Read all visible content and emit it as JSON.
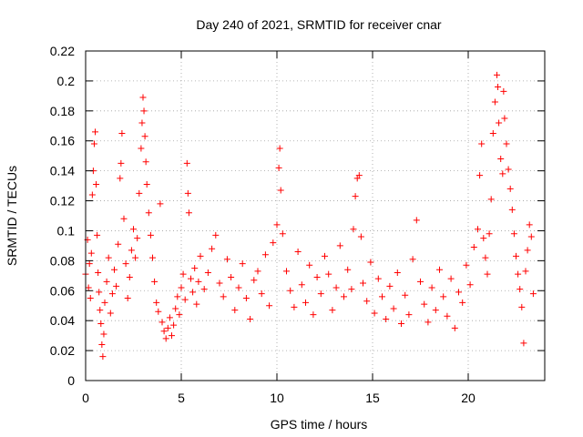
{
  "chart_data": {
    "type": "scatter",
    "title": "Day 240 of 2021, SRMTID for receiver cnar",
    "xlabel": "GPS time / hours",
    "ylabel": "SRMTID / TECUs",
    "xlim": [
      0,
      24
    ],
    "ylim": [
      0,
      0.22
    ],
    "xticks": [
      0,
      5,
      10,
      15,
      20
    ],
    "xtick_labels": [
      "0",
      "5",
      "10",
      "15",
      "20"
    ],
    "yticks": [
      0,
      0.02,
      0.04,
      0.06,
      0.08,
      0.1,
      0.12,
      0.14,
      0.16,
      0.18,
      0.2,
      0.22
    ],
    "ytick_labels": [
      "0",
      "0.02",
      "0.04",
      "0.06",
      "0.08",
      "0.1",
      "0.12",
      "0.14",
      "0.16",
      "0.18",
      "0.2",
      "0.22"
    ],
    "grid": true,
    "marker": "+",
    "series_color": "#ff0000",
    "series": [
      {
        "name": "SRMTID",
        "points": [
          [
            0.0,
            0.071
          ],
          [
            0.1,
            0.094
          ],
          [
            0.15,
            0.062
          ],
          [
            0.2,
            0.078
          ],
          [
            0.25,
            0.055
          ],
          [
            0.3,
            0.085
          ],
          [
            0.35,
            0.124
          ],
          [
            0.4,
            0.14
          ],
          [
            0.45,
            0.158
          ],
          [
            0.5,
            0.166
          ],
          [
            0.55,
            0.131
          ],
          [
            0.6,
            0.097
          ],
          [
            0.65,
            0.072
          ],
          [
            0.7,
            0.059
          ],
          [
            0.75,
            0.047
          ],
          [
            0.8,
            0.038
          ],
          [
            0.85,
            0.024
          ],
          [
            0.9,
            0.016
          ],
          [
            0.95,
            0.031
          ],
          [
            1.0,
            0.052
          ],
          [
            1.1,
            0.066
          ],
          [
            1.2,
            0.082
          ],
          [
            1.3,
            0.045
          ],
          [
            1.4,
            0.058
          ],
          [
            1.5,
            0.074
          ],
          [
            1.6,
            0.063
          ],
          [
            1.7,
            0.091
          ],
          [
            1.8,
            0.135
          ],
          [
            1.85,
            0.145
          ],
          [
            1.9,
            0.165
          ],
          [
            2.0,
            0.108
          ],
          [
            2.1,
            0.078
          ],
          [
            2.2,
            0.055
          ],
          [
            2.3,
            0.069
          ],
          [
            2.4,
            0.087
          ],
          [
            2.5,
            0.101
          ],
          [
            2.6,
            0.082
          ],
          [
            2.7,
            0.095
          ],
          [
            2.8,
            0.125
          ],
          [
            2.9,
            0.155
          ],
          [
            2.95,
            0.172
          ],
          [
            3.0,
            0.189
          ],
          [
            3.05,
            0.18
          ],
          [
            3.1,
            0.163
          ],
          [
            3.15,
            0.146
          ],
          [
            3.2,
            0.131
          ],
          [
            3.3,
            0.112
          ],
          [
            3.4,
            0.097
          ],
          [
            3.5,
            0.082
          ],
          [
            3.6,
            0.066
          ],
          [
            3.7,
            0.052
          ],
          [
            3.8,
            0.046
          ],
          [
            3.9,
            0.118
          ],
          [
            4.0,
            0.039
          ],
          [
            4.1,
            0.033
          ],
          [
            4.2,
            0.028
          ],
          [
            4.3,
            0.035
          ],
          [
            4.4,
            0.042
          ],
          [
            4.5,
            0.03
          ],
          [
            4.6,
            0.037
          ],
          [
            4.7,
            0.048
          ],
          [
            4.8,
            0.056
          ],
          [
            4.9,
            0.044
          ],
          [
            5.0,
            0.062
          ],
          [
            5.1,
            0.071
          ],
          [
            5.2,
            0.054
          ],
          [
            5.3,
            0.145
          ],
          [
            5.35,
            0.125
          ],
          [
            5.4,
            0.112
          ],
          [
            5.5,
            0.068
          ],
          [
            5.6,
            0.059
          ],
          [
            5.7,
            0.075
          ],
          [
            5.8,
            0.051
          ],
          [
            5.9,
            0.066
          ],
          [
            6.0,
            0.083
          ],
          [
            6.2,
            0.061
          ],
          [
            6.4,
            0.072
          ],
          [
            6.6,
            0.088
          ],
          [
            6.8,
            0.097
          ],
          [
            7.0,
            0.065
          ],
          [
            7.2,
            0.056
          ],
          [
            7.4,
            0.081
          ],
          [
            7.6,
            0.069
          ],
          [
            7.8,
            0.047
          ],
          [
            8.0,
            0.062
          ],
          [
            8.2,
            0.078
          ],
          [
            8.4,
            0.055
          ],
          [
            8.6,
            0.041
          ],
          [
            8.8,
            0.067
          ],
          [
            9.0,
            0.073
          ],
          [
            9.2,
            0.058
          ],
          [
            9.4,
            0.084
          ],
          [
            9.6,
            0.05
          ],
          [
            9.8,
            0.092
          ],
          [
            10.0,
            0.104
          ],
          [
            10.1,
            0.142
          ],
          [
            10.15,
            0.155
          ],
          [
            10.2,
            0.127
          ],
          [
            10.3,
            0.098
          ],
          [
            10.5,
            0.073
          ],
          [
            10.7,
            0.06
          ],
          [
            10.9,
            0.049
          ],
          [
            11.1,
            0.086
          ],
          [
            11.3,
            0.064
          ],
          [
            11.5,
            0.052
          ],
          [
            11.7,
            0.077
          ],
          [
            11.9,
            0.044
          ],
          [
            12.1,
            0.069
          ],
          [
            12.3,
            0.058
          ],
          [
            12.5,
            0.083
          ],
          [
            12.7,
            0.071
          ],
          [
            12.9,
            0.047
          ],
          [
            13.1,
            0.062
          ],
          [
            13.3,
            0.09
          ],
          [
            13.5,
            0.056
          ],
          [
            13.7,
            0.074
          ],
          [
            13.9,
            0.061
          ],
          [
            14.0,
            0.101
          ],
          [
            14.1,
            0.123
          ],
          [
            14.2,
            0.135
          ],
          [
            14.3,
            0.137
          ],
          [
            14.4,
            0.096
          ],
          [
            14.5,
            0.065
          ],
          [
            14.7,
            0.053
          ],
          [
            14.9,
            0.079
          ],
          [
            15.1,
            0.045
          ],
          [
            15.3,
            0.068
          ],
          [
            15.5,
            0.056
          ],
          [
            15.7,
            0.041
          ],
          [
            15.9,
            0.063
          ],
          [
            16.1,
            0.048
          ],
          [
            16.3,
            0.072
          ],
          [
            16.5,
            0.038
          ],
          [
            16.7,
            0.057
          ],
          [
            16.9,
            0.044
          ],
          [
            17.1,
            0.081
          ],
          [
            17.3,
            0.107
          ],
          [
            17.5,
            0.066
          ],
          [
            17.7,
            0.051
          ],
          [
            17.9,
            0.039
          ],
          [
            18.1,
            0.062
          ],
          [
            18.3,
            0.047
          ],
          [
            18.5,
            0.074
          ],
          [
            18.7,
            0.056
          ],
          [
            18.9,
            0.043
          ],
          [
            19.1,
            0.068
          ],
          [
            19.3,
            0.035
          ],
          [
            19.5,
            0.059
          ],
          [
            19.7,
            0.052
          ],
          [
            19.9,
            0.077
          ],
          [
            20.1,
            0.064
          ],
          [
            20.3,
            0.089
          ],
          [
            20.5,
            0.101
          ],
          [
            20.6,
            0.137
          ],
          [
            20.7,
            0.158
          ],
          [
            20.8,
            0.095
          ],
          [
            20.9,
            0.082
          ],
          [
            21.0,
            0.071
          ],
          [
            21.1,
            0.098
          ],
          [
            21.2,
            0.121
          ],
          [
            21.3,
            0.165
          ],
          [
            21.4,
            0.186
          ],
          [
            21.5,
            0.204
          ],
          [
            21.55,
            0.196
          ],
          [
            21.6,
            0.172
          ],
          [
            21.7,
            0.148
          ],
          [
            21.8,
            0.138
          ],
          [
            21.85,
            0.193
          ],
          [
            21.9,
            0.175
          ],
          [
            22.0,
            0.158
          ],
          [
            22.1,
            0.141
          ],
          [
            22.2,
            0.128
          ],
          [
            22.3,
            0.114
          ],
          [
            22.4,
            0.098
          ],
          [
            22.5,
            0.083
          ],
          [
            22.6,
            0.071
          ],
          [
            22.7,
            0.061
          ],
          [
            22.8,
            0.049
          ],
          [
            22.9,
            0.025
          ],
          [
            23.0,
            0.073
          ],
          [
            23.1,
            0.087
          ],
          [
            23.2,
            0.104
          ],
          [
            23.3,
            0.096
          ],
          [
            23.4,
            0.058
          ]
        ]
      }
    ]
  }
}
